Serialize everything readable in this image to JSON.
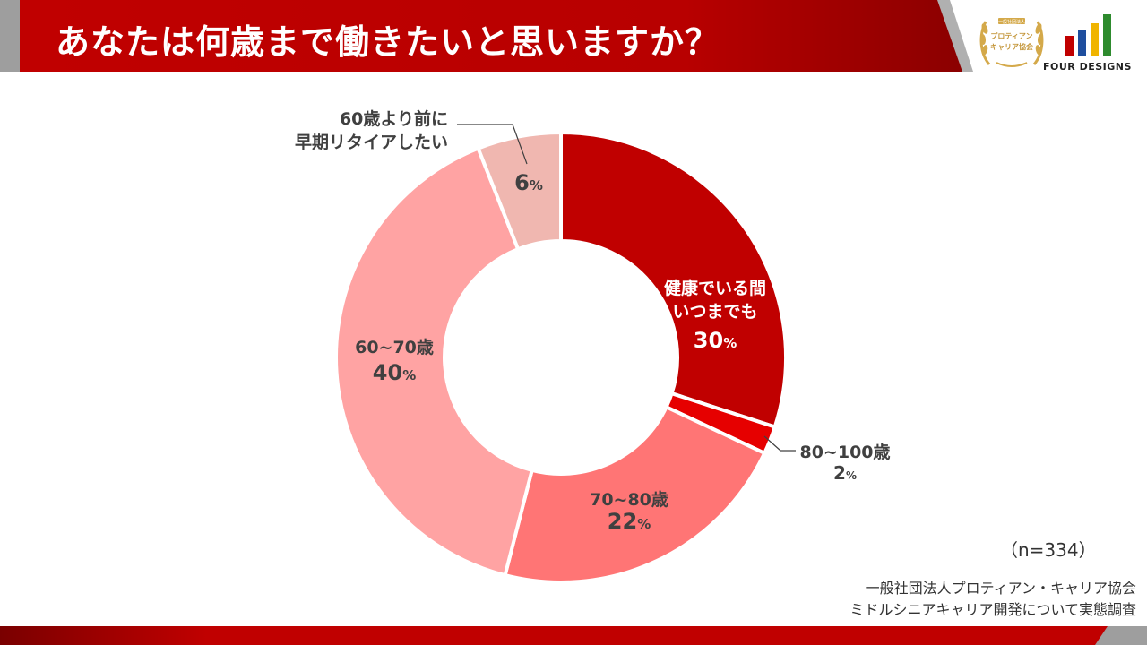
{
  "header": {
    "title": "あなたは何歳まで働きたいと思いますか？"
  },
  "logos": {
    "seal_text_top": "一般社団法人",
    "seal_text_mid": "プロティアン",
    "seal_text_bottom": "キャリア協会",
    "brand_name": "FOUR DESIGNS"
  },
  "colors": {
    "accent": "#c00000",
    "brand_bar_1": "#c00000",
    "brand_bar_2": "#1f4e9e",
    "brand_bar_3": "#f0b400",
    "brand_bar_4": "#2e8b2e",
    "seal_gold": "#d4a94a"
  },
  "chart_data": {
    "type": "pie",
    "title": "",
    "donut": true,
    "slices": [
      {
        "label": "健康でいる間いつまでも",
        "label_lines": [
          "健康でいる間",
          "いつまでも"
        ],
        "value": 30,
        "value_text": "30",
        "color": "#c00000"
      },
      {
        "label": "80~100歳",
        "label_lines": [
          "80~100歳"
        ],
        "value": 2,
        "value_text": "2",
        "color": "#e60000"
      },
      {
        "label": "70~80歳",
        "label_lines": [
          "70~80歳"
        ],
        "value": 22,
        "value_text": "22",
        "color": "#ff7575"
      },
      {
        "label": "60~70歳",
        "label_lines": [
          "60~70歳"
        ],
        "value": 40,
        "value_text": "40",
        "color": "#ffa3a3"
      },
      {
        "label": "60歳より前に早期リタイアしたい",
        "label_lines": [
          "60歳より前に",
          "早期リタイアしたい"
        ],
        "value": 6,
        "value_text": "6",
        "color": "#f0b7b0"
      }
    ],
    "unit": "%"
  },
  "notes": {
    "sample_size": "（n=334）",
    "source_line_1": "一般社団法人プロティアン・キャリア協会",
    "source_line_2": "ミドルシニアキャリア開発について実態調査"
  }
}
